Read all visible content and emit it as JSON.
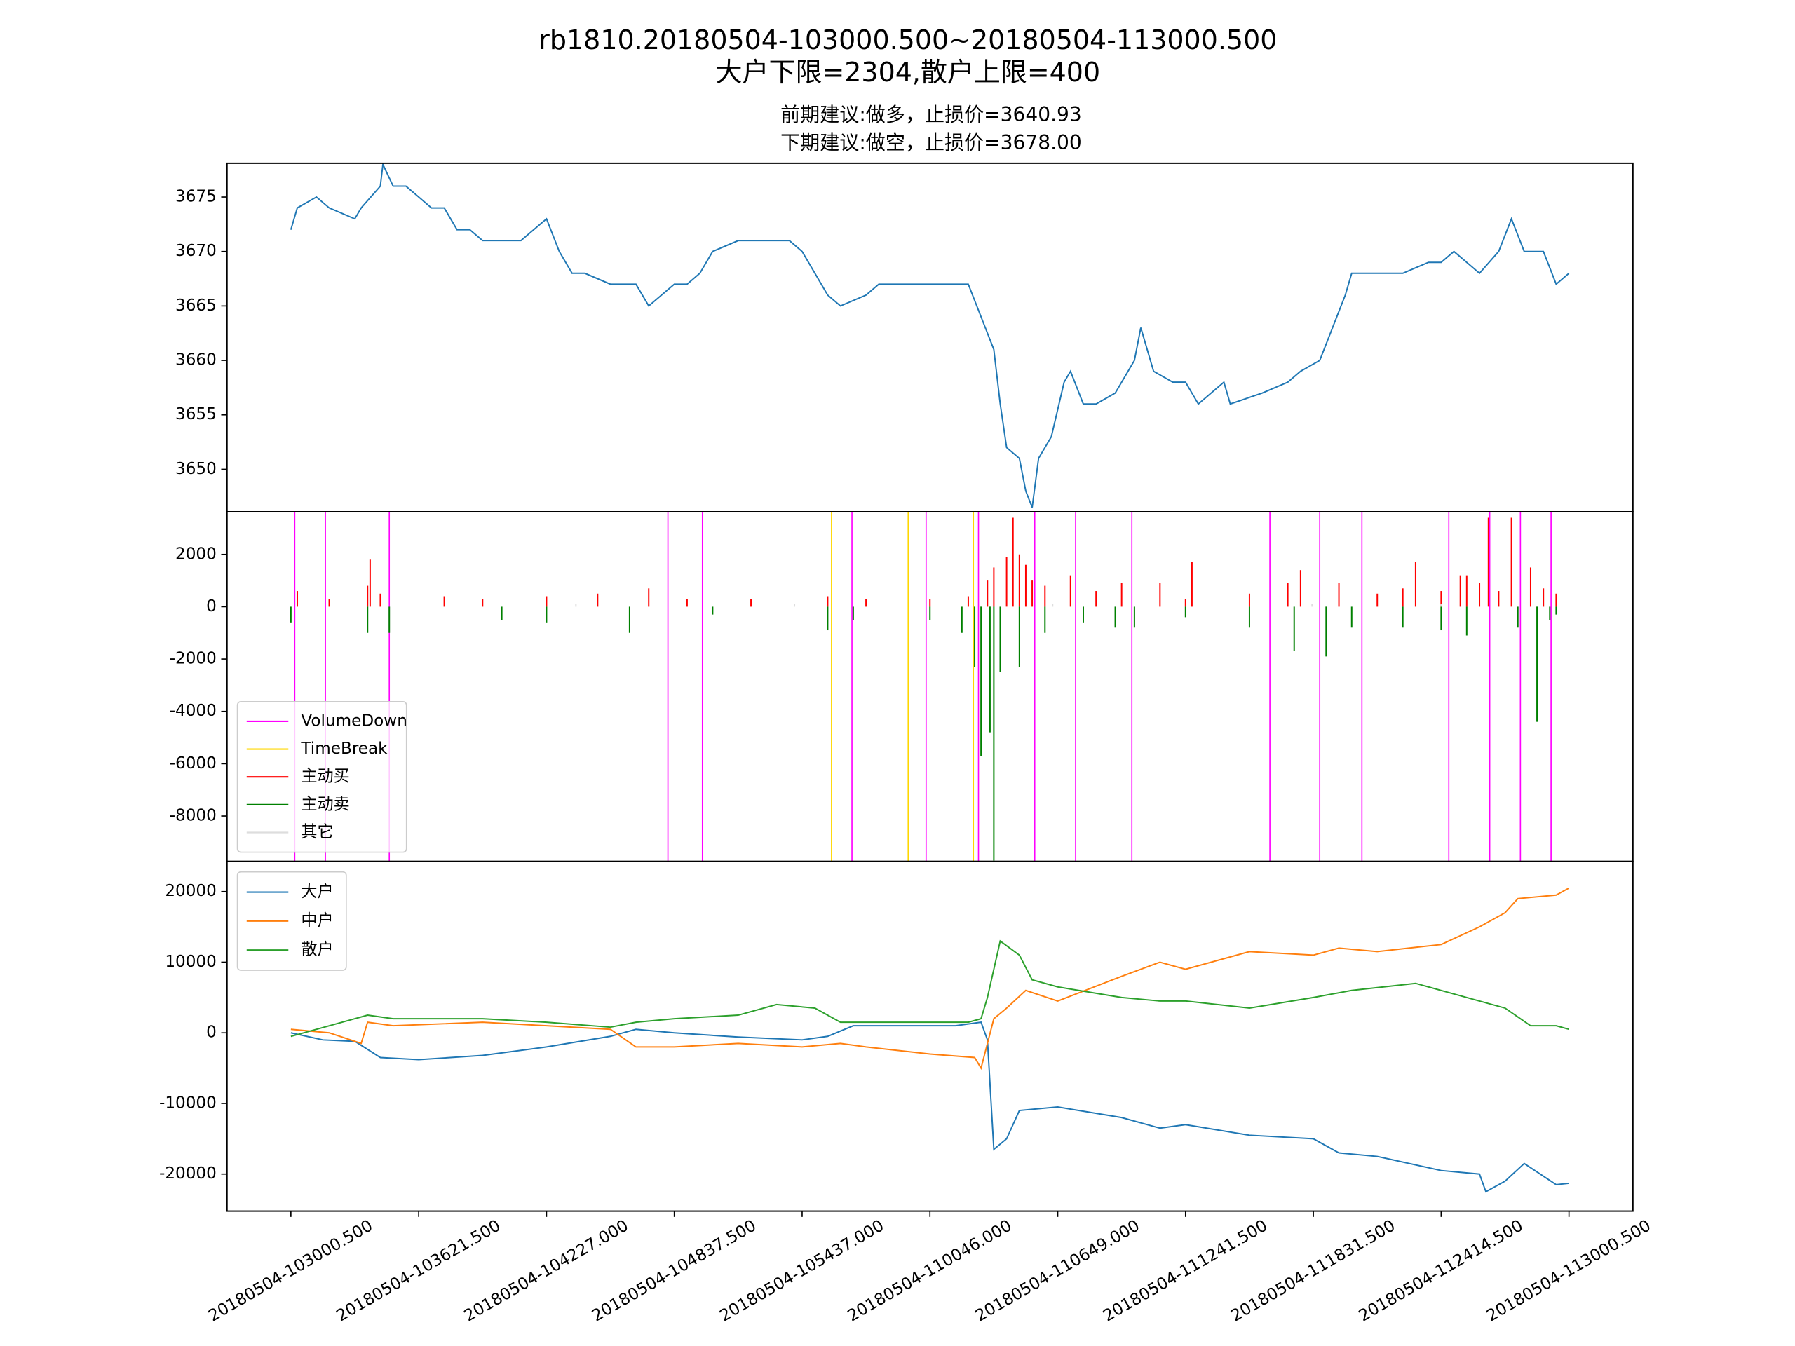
{
  "chart_data": [
    {
      "type": "line",
      "title": [
        "rb1810.20180504-103000.500~20180504-113000.500",
        "大户下限=2304,散户上限=400"
      ],
      "subtitle": [
        "前期建议:做多，止损价=3640.93",
        "下期建议:做空，止损价=3678.00"
      ],
      "xlim": [
        -0.5,
        10.5
      ],
      "ylim": [
        3646.1,
        3678.1
      ],
      "yticks": [
        3650,
        3655,
        3660,
        3665,
        3670,
        3675
      ],
      "series": [
        {
          "color": "#1f77b4",
          "x": [
            0,
            0.05,
            0.2,
            0.3,
            0.5,
            0.55,
            0.7,
            0.72,
            0.8,
            0.9,
            1.0,
            1.1,
            1.2,
            1.3,
            1.4,
            1.5,
            1.8,
            1.9,
            2.0,
            2.1,
            2.2,
            2.3,
            2.5,
            2.7,
            2.8,
            3.0,
            3.1,
            3.2,
            3.3,
            3.5,
            3.8,
            3.9,
            4.0,
            4.1,
            4.2,
            4.3,
            4.5,
            4.6,
            4.9,
            5.2,
            5.3,
            5.4,
            5.5,
            5.55,
            5.6,
            5.7,
            5.75,
            5.8,
            5.85,
            5.95,
            6.05,
            6.1,
            6.2,
            6.3,
            6.45,
            6.6,
            6.65,
            6.75,
            6.9,
            7.0,
            7.1,
            7.3,
            7.35,
            7.6,
            7.8,
            7.9,
            8.05,
            8.15,
            8.25,
            8.3,
            8.5,
            8.7,
            8.9,
            9.0,
            9.1,
            9.2,
            9.3,
            9.45,
            9.55,
            9.65,
            9.8,
            9.9,
            10.0
          ],
          "values": [
            3672,
            3674,
            3675,
            3674,
            3673,
            3674,
            3676,
            3678,
            3676,
            3676,
            3675,
            3674,
            3674,
            3672,
            3672,
            3671,
            3671,
            3672,
            3673,
            3670,
            3668,
            3668,
            3667,
            3667,
            3665,
            3667,
            3667,
            3668,
            3670,
            3671,
            3671,
            3671,
            3670,
            3668,
            3666,
            3665,
            3666,
            3667,
            3667,
            3667,
            3667,
            3664,
            3661,
            3656,
            3652,
            3651,
            3648,
            3646.5,
            3651,
            3653,
            3658,
            3659,
            3656,
            3656,
            3657,
            3660,
            3663,
            3659,
            3658,
            3658,
            3656,
            3658,
            3656,
            3657,
            3658,
            3659,
            3660,
            3663,
            3666,
            3668,
            3668,
            3668,
            3669,
            3669,
            3670,
            3669,
            3668,
            3670,
            3673,
            3670,
            3670,
            3667,
            3668
          ]
        }
      ]
    },
    {
      "type": "bar",
      "xlim": [
        -0.5,
        10.5
      ],
      "ylim": [
        -9735,
        3628
      ],
      "yticks": [
        -8000,
        -6000,
        -4000,
        -2000,
        0,
        2000
      ],
      "legend": "lower left",
      "series": [
        {
          "name": "VolumeDown",
          "color": "#ff00ff",
          "x": [
            0.03,
            0.27,
            0.77,
            2.95,
            3.22,
            4.39,
            4.97,
            5.38,
            5.82,
            6.14,
            6.58,
            7.66,
            8.05,
            8.38,
            9.06,
            9.38,
            9.62,
            9.86
          ]
        },
        {
          "name": "TimeBreak",
          "color": "#ffd700",
          "x": [
            4.23,
            4.83,
            5.34
          ]
        },
        {
          "name": "主动买",
          "color": "#ff0000",
          "x": [
            0.05,
            0.3,
            0.6,
            0.62,
            0.7,
            1.2,
            1.5,
            2.0,
            2.4,
            2.8,
            3.1,
            3.6,
            4.2,
            4.5,
            5.0,
            5.3,
            5.45,
            5.5,
            5.6,
            5.65,
            5.7,
            5.75,
            5.8,
            5.9,
            6.1,
            6.3,
            6.5,
            6.8,
            7.0,
            7.05,
            7.5,
            7.8,
            7.9,
            8.2,
            8.5,
            8.7,
            8.8,
            9.0,
            9.15,
            9.2,
            9.3,
            9.37,
            9.45,
            9.55,
            9.7,
            9.8,
            9.9
          ],
          "values": [
            600,
            300,
            800,
            1800,
            500,
            400,
            300,
            400,
            500,
            700,
            300,
            300,
            400,
            300,
            300,
            400,
            1000,
            1500,
            1900,
            3400,
            2000,
            1600,
            1000,
            800,
            1200,
            600,
            900,
            900,
            300,
            1700,
            500,
            900,
            1400,
            900,
            500,
            700,
            1700,
            600,
            1200,
            1200,
            900,
            3400,
            600,
            3400,
            1500,
            700,
            500
          ]
        },
        {
          "name": "主动卖",
          "color": "#008000",
          "x": [
            0.0,
            0.6,
            0.77,
            1.65,
            2.0,
            2.65,
            3.3,
            4.2,
            4.4,
            5.0,
            5.25,
            5.35,
            5.4,
            5.47,
            5.5,
            5.55,
            5.7,
            5.9,
            6.2,
            6.45,
            6.6,
            7.0,
            7.5,
            7.85,
            8.1,
            8.3,
            8.7,
            9.0,
            9.2,
            9.6,
            9.75,
            9.85,
            9.9
          ],
          "values": [
            -600,
            -1000,
            -1000,
            -500,
            -600,
            -1000,
            -300,
            -900,
            -500,
            -500,
            -1000,
            -2300,
            -5700,
            -4800,
            -9700,
            -2500,
            -2300,
            -1000,
            -600,
            -800,
            -800,
            -400,
            -800,
            -1700,
            -1900,
            -800,
            -800,
            -900,
            -1100,
            -800,
            -4400,
            -500,
            -300
          ]
        },
        {
          "name": "其它",
          "color": "#dddddd",
          "x": [
            2.23,
            3.94,
            5.96,
            7.99,
            9.0
          ],
          "values": [
            100,
            100,
            100,
            100,
            100
          ]
        }
      ]
    },
    {
      "type": "line",
      "xlim": [
        -0.5,
        10.5
      ],
      "ylim": [
        -25246,
        24262
      ],
      "yticks": [
        -20000,
        -10000,
        0,
        10000,
        20000
      ],
      "legend": "upper left",
      "xticks": [
        {
          "value": 0,
          "label": "20180504-103000.500"
        },
        {
          "value": 1,
          "label": "20180504-103621.500"
        },
        {
          "value": 2,
          "label": "20180504-104227.000"
        },
        {
          "value": 3,
          "label": "20180504-104837.500"
        },
        {
          "value": 4,
          "label": "20180504-105437.000"
        },
        {
          "value": 5,
          "label": "20180504-110046.000"
        },
        {
          "value": 6,
          "label": "20180504-110649.000"
        },
        {
          "value": 7,
          "label": "20180504-111241.500"
        },
        {
          "value": 8,
          "label": "20180504-111831.500"
        },
        {
          "value": 9,
          "label": "20180504-112414.500"
        },
        {
          "value": 10,
          "label": "20180504-113000.500"
        }
      ],
      "series": [
        {
          "name": "大户",
          "color": "#1f77b4",
          "x": [
            0,
            0.25,
            0.5,
            0.7,
            1.0,
            1.5,
            2.0,
            2.5,
            2.7,
            3.0,
            3.5,
            4.0,
            4.2,
            4.4,
            4.8,
            5.2,
            5.4,
            5.45,
            5.5,
            5.6,
            5.7,
            6.0,
            6.5,
            6.8,
            7.0,
            7.5,
            8.0,
            8.2,
            8.5,
            9.0,
            9.3,
            9.35,
            9.5,
            9.65,
            9.9,
            10.0
          ],
          "values": [
            0,
            -1000,
            -1200,
            -3500,
            -3800,
            -3200,
            -2000,
            -500,
            500,
            0,
            -600,
            -1000,
            -500,
            1000,
            1000,
            1000,
            1500,
            -1000,
            -16500,
            -15000,
            -11000,
            -10500,
            -12000,
            -13500,
            -13000,
            -14500,
            -15000,
            -17000,
            -17500,
            -19500,
            -20000,
            -22500,
            -21000,
            -18500,
            -21500,
            -21300
          ]
        },
        {
          "name": "中户",
          "color": "#ff7f0e",
          "x": [
            0,
            0.3,
            0.55,
            0.6,
            0.8,
            1.5,
            2.0,
            2.5,
            2.7,
            3.0,
            3.5,
            4.0,
            4.3,
            4.5,
            5.0,
            5.35,
            5.4,
            5.5,
            5.6,
            5.75,
            6.0,
            6.5,
            6.8,
            7.0,
            7.5,
            8.0,
            8.2,
            8.5,
            9.0,
            9.3,
            9.5,
            9.6,
            9.9,
            10.0
          ],
          "values": [
            500,
            0,
            -1500,
            1500,
            1000,
            1500,
            1000,
            500,
            -2000,
            -2000,
            -1500,
            -2000,
            -1500,
            -2000,
            -3000,
            -3500,
            -5000,
            2000,
            3500,
            6000,
            4500,
            8000,
            10000,
            9000,
            11500,
            11000,
            12000,
            11500,
            12500,
            15000,
            17000,
            19000,
            19500,
            20500
          ]
        },
        {
          "name": "散户",
          "color": "#2ca02c",
          "x": [
            0,
            0.3,
            0.6,
            0.8,
            1.5,
            2.0,
            2.5,
            2.7,
            3.0,
            3.5,
            3.8,
            4.1,
            4.3,
            4.8,
            5.3,
            5.4,
            5.45,
            5.55,
            5.7,
            5.8,
            6.0,
            6.5,
            6.8,
            7.0,
            7.5,
            8.0,
            8.3,
            8.8,
            9.0,
            9.3,
            9.5,
            9.7,
            9.9,
            10.0
          ],
          "values": [
            -500,
            1000,
            2500,
            2000,
            2000,
            1500,
            800,
            1500,
            2000,
            2500,
            4000,
            3500,
            1500,
            1500,
            1500,
            2000,
            5000,
            13000,
            11000,
            7500,
            6500,
            5000,
            4500,
            4500,
            3500,
            5000,
            6000,
            7000,
            6000,
            4500,
            3500,
            1000,
            1000,
            500
          ]
        }
      ]
    }
  ]
}
